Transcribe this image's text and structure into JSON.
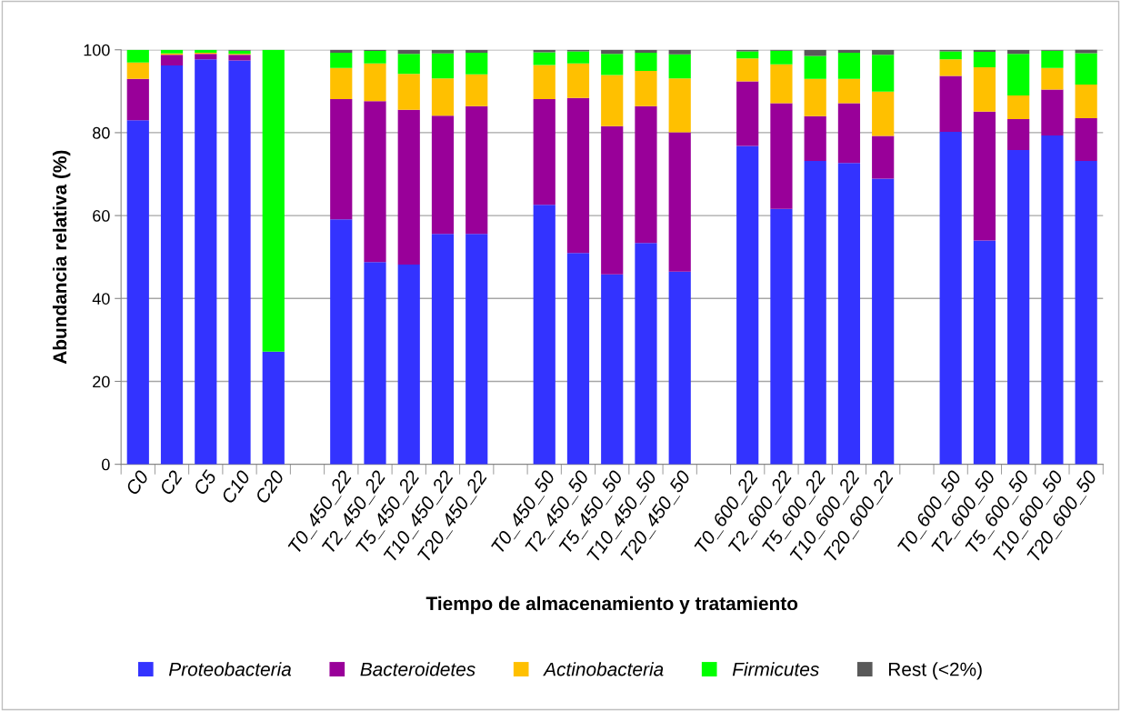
{
  "chart_data": {
    "type": "bar",
    "stacked": true,
    "xlabel": "Tiempo de almacenamiento y tratamiento",
    "ylabel": "Abundancia relativa (%)",
    "categories": [
      "C0",
      "C2",
      "C5",
      "C10",
      "C20",
      null,
      "T0_450_22",
      "T2_450_22",
      "T5_450_22",
      "T10_450_22",
      "T20_450_22",
      null,
      "T0_450_50",
      "T2_450_50",
      "T5_450_50",
      "T10_450_50",
      "T20_450_50",
      null,
      "T0_600_22",
      "T2_600_22",
      "T5_600_22",
      "T10_600_22",
      "T20_600_22",
      null,
      "T0_600_50",
      "T2_600_50",
      "T5_600_50",
      "T10_600_50",
      "T20_600_50"
    ],
    "series": [
      {
        "name": "Proteobacteria",
        "color": "#3333ff",
        "values": [
          83.0,
          96.2,
          97.7,
          97.4,
          27.2,
          null,
          59.1,
          48.8,
          48.2,
          55.6,
          55.6,
          null,
          62.6,
          51.0,
          45.8,
          53.4,
          46.5,
          null,
          76.8,
          61.6,
          73.2,
          72.7,
          68.9,
          null,
          80.2,
          54.0,
          75.8,
          79.3,
          73.2
        ]
      },
      {
        "name": "Bacteroidetes",
        "color": "#990099",
        "values": [
          10.0,
          2.6,
          1.3,
          1.4,
          0,
          null,
          29.0,
          38.8,
          37.3,
          28.5,
          30.8,
          null,
          25.5,
          37.4,
          35.8,
          33.0,
          33.6,
          null,
          15.6,
          25.5,
          10.8,
          14.4,
          10.3,
          null,
          13.5,
          31.1,
          7.5,
          11.1,
          10.3
        ]
      },
      {
        "name": "Actinobacteria",
        "color": "#ffc000",
        "values": [
          3.9,
          0.3,
          0.3,
          0.2,
          0,
          null,
          7.5,
          9.1,
          8.7,
          9.0,
          7.7,
          null,
          8.2,
          8.3,
          12.3,
          8.5,
          13.0,
          null,
          5.5,
          9.4,
          9.0,
          5.9,
          10.7,
          null,
          4.0,
          10.7,
          5.7,
          5.2,
          8.1
        ]
      },
      {
        "name": "Firmicutes",
        "color": "#00ff00",
        "values": [
          3.1,
          0.9,
          0.7,
          0.8,
          72.8,
          null,
          3.7,
          3.0,
          4.8,
          6.0,
          5.2,
          null,
          3.1,
          2.9,
          5.1,
          4.4,
          5.8,
          null,
          1.7,
          3.3,
          5.5,
          6.3,
          8.9,
          null,
          1.9,
          3.7,
          10.0,
          4.2,
          7.6
        ]
      },
      {
        "name": "Rest (<2%)",
        "color": "#595959",
        "values": [
          0,
          0,
          0,
          0.2,
          0,
          null,
          0.7,
          0.3,
          1.0,
          0.9,
          0.7,
          null,
          0.6,
          0.4,
          1.0,
          0.7,
          1.1,
          null,
          0.4,
          0.2,
          1.5,
          0.7,
          1.2,
          null,
          0.4,
          0.5,
          1.0,
          0.2,
          1.0
        ]
      }
    ],
    "ylim": [
      0,
      100
    ],
    "yticks": [
      0,
      20,
      40,
      60,
      80,
      100
    ],
    "grid": "y",
    "legend": "bottom"
  }
}
